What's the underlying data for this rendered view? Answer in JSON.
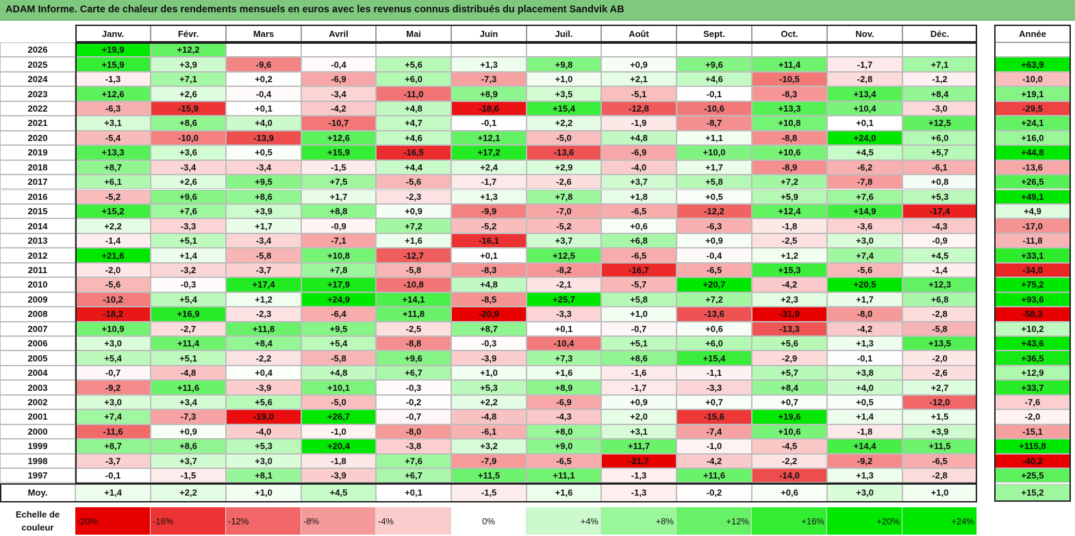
{
  "title": "ADAM Informe. Carte de chaleur des rendements mensuels en euros avec les revenus connus distribués du placement Sandvik AB",
  "chart_data": {
    "type": "heatmap",
    "months": [
      "Janv.",
      "Févr.",
      "Mars",
      "Avril",
      "Mai",
      "Juin",
      "Juil.",
      "Août",
      "Sept.",
      "Oct.",
      "Nov.",
      "Déc."
    ],
    "year_header": "Année",
    "rows": [
      {
        "year": "2026",
        "months": [
          "+19,9",
          "+12,2",
          "",
          "",
          "",
          "",
          "",
          "",
          "",
          "",
          "",
          ""
        ],
        "annual": ""
      },
      {
        "year": "2025",
        "months": [
          "+15,9",
          "+3,9",
          "-9,6",
          "-0,4",
          "+5,6",
          "+1,3",
          "+9,8",
          "+0,9",
          "+9,6",
          "+11,4",
          "-1,7",
          "+7,1"
        ],
        "annual": "+63,9"
      },
      {
        "year": "2024",
        "months": [
          "-1,3",
          "+7,1",
          "+0,2",
          "-6,9",
          "+6,0",
          "-7,3",
          "+1,0",
          "+2,1",
          "+4,6",
          "-10,5",
          "-2,8",
          "-1,2"
        ],
        "annual": "-10,0"
      },
      {
        "year": "2023",
        "months": [
          "+12,6",
          "+2,6",
          "-0,4",
          "-3,4",
          "-11,0",
          "+8,9",
          "+3,5",
          "-5,1",
          "-0,1",
          "-8,3",
          "+13,4",
          "+8,4"
        ],
        "annual": "+19,1"
      },
      {
        "year": "2022",
        "months": [
          "-6,3",
          "-15,9",
          "+0,1",
          "-4,2",
          "+4,8",
          "-18,6",
          "+15,4",
          "-12,8",
          "-10,6",
          "+13,3",
          "+10,4",
          "-3,0"
        ],
        "annual": "-29,5"
      },
      {
        "year": "2021",
        "months": [
          "+3,1",
          "+8,6",
          "+4,0",
          "-10,7",
          "+4,7",
          "-0,1",
          "+2,2",
          "-1,9",
          "-8,7",
          "+10,8",
          "+0,1",
          "+12,5"
        ],
        "annual": "+24,1"
      },
      {
        "year": "2020",
        "months": [
          "-5,4",
          "-10,0",
          "-13,9",
          "+12,6",
          "+4,6",
          "+12,1",
          "-5,0",
          "+4,8",
          "+1,1",
          "-8,8",
          "+24,0",
          "+6,0"
        ],
        "annual": "+16,0"
      },
      {
        "year": "2019",
        "months": [
          "+13,3",
          "+3,6",
          "+0,5",
          "+15,9",
          "-16,5",
          "+17,2",
          "-13,6",
          "-6,9",
          "+10,0",
          "+10,6",
          "+4,5",
          "+5,7"
        ],
        "annual": "+44,8"
      },
      {
        "year": "2018",
        "months": [
          "+8,7",
          "-3,4",
          "-3,4",
          "-1,5",
          "+4,4",
          "+2,4",
          "+2,9",
          "-4,0",
          "+1,7",
          "-8,9",
          "-6,2",
          "-6,1"
        ],
        "annual": "-13,6"
      },
      {
        "year": "2017",
        "months": [
          "+6,1",
          "+2,6",
          "+9,5",
          "+7,5",
          "-5,6",
          "-1,7",
          "-2,6",
          "+3,7",
          "+5,8",
          "+7,2",
          "-7,8",
          "+0,8"
        ],
        "annual": "+26,5"
      },
      {
        "year": "2016",
        "months": [
          "-5,2",
          "+9,6",
          "+8,6",
          "+1,7",
          "-2,3",
          "+1,3",
          "+7,8",
          "+1,8",
          "+0,5",
          "+5,9",
          "+7,6",
          "+5,3"
        ],
        "annual": "+49,1"
      },
      {
        "year": "2015",
        "months": [
          "+15,2",
          "+7,6",
          "+3,9",
          "+8,8",
          "+0,9",
          "-9,9",
          "-7,0",
          "-6,5",
          "-12,2",
          "+12,4",
          "+14,9",
          "-17,4"
        ],
        "annual": "+4,9"
      },
      {
        "year": "2014",
        "months": [
          "+2,2",
          "-3,3",
          "+1,7",
          "-0,9",
          "+7,2",
          "-5,2",
          "-5,2",
          "+0,6",
          "-6,3",
          "-1,8",
          "-3,6",
          "-4,3"
        ],
        "annual": "-17,0"
      },
      {
        "year": "2013",
        "months": [
          "-1,4",
          "+5,1",
          "-3,4",
          "-7,1",
          "+1,6",
          "-16,1",
          "+3,7",
          "+6,8",
          "+0,9",
          "-2,5",
          "+3,0",
          "-0,9"
        ],
        "annual": "-11,8"
      },
      {
        "year": "2012",
        "months": [
          "+21,6",
          "+1,4",
          "-5,8",
          "+10,8",
          "-12,7",
          "+0,1",
          "+12,5",
          "-6,5",
          "-0,4",
          "+1,2",
          "+7,4",
          "+4,5"
        ],
        "annual": "+33,1"
      },
      {
        "year": "2011",
        "months": [
          "-2,0",
          "-3,2",
          "-3,7",
          "+7,8",
          "-5,8",
          "-8,3",
          "-8,2",
          "-16,7",
          "-6,5",
          "+15,3",
          "-5,6",
          "-1,4"
        ],
        "annual": "-34,0"
      },
      {
        "year": "2010",
        "months": [
          "-5,6",
          "-0,3",
          "+17,4",
          "+17,9",
          "-10,8",
          "+4,8",
          "-2,1",
          "-5,7",
          "+20,7",
          "-4,2",
          "+20,5",
          "+12,3"
        ],
        "annual": "+75,2"
      },
      {
        "year": "2009",
        "months": [
          "-10,2",
          "+5,4",
          "+1,2",
          "+24,9",
          "+14,1",
          "-8,5",
          "+25,7",
          "+5,8",
          "+7,2",
          "+2,3",
          "+1,7",
          "+6,8"
        ],
        "annual": "+93,6"
      },
      {
        "year": "2008",
        "months": [
          "-18,2",
          "+16,9",
          "-2,3",
          "-6,4",
          "+11,8",
          "-20,9",
          "-3,3",
          "+1,0",
          "-13,6",
          "-31,9",
          "-8,0",
          "-2,8"
        ],
        "annual": "-58,3"
      },
      {
        "year": "2007",
        "months": [
          "+10,9",
          "-2,7",
          "+11,8",
          "+9,5",
          "-2,5",
          "+8,7",
          "+0,1",
          "-0,7",
          "+0,6",
          "-13,3",
          "-4,2",
          "-5,8"
        ],
        "annual": "+10,2"
      },
      {
        "year": "2006",
        "months": [
          "+3,0",
          "+11,4",
          "+8,4",
          "+5,4",
          "-8,8",
          "-0,3",
          "-10,4",
          "+5,1",
          "+6,0",
          "+5,6",
          "+1,3",
          "+13,5"
        ],
        "annual": "+43,6"
      },
      {
        "year": "2005",
        "months": [
          "+5,4",
          "+5,1",
          "-2,2",
          "-5,8",
          "+9,6",
          "-3,9",
          "+7,3",
          "+8,6",
          "+15,4",
          "-2,9",
          "-0,1",
          "-2,0"
        ],
        "annual": "+36,5"
      },
      {
        "year": "2004",
        "months": [
          "-0,7",
          "-4,8",
          "+0,4",
          "+4,8",
          "+6,7",
          "+1,0",
          "+1,6",
          "-1,6",
          "-1,1",
          "+5,7",
          "+3,8",
          "-2,6"
        ],
        "annual": "+12,9"
      },
      {
        "year": "2003",
        "months": [
          "-9,2",
          "+11,6",
          "-3,9",
          "+10,1",
          "-0,3",
          "+5,3",
          "+8,9",
          "-1,7",
          "-3,3",
          "+8,4",
          "+4,0",
          "+2,7"
        ],
        "annual": "+33,7"
      },
      {
        "year": "2002",
        "months": [
          "+3,0",
          "+3,4",
          "+5,6",
          "-5,0",
          "-0,2",
          "+2,2",
          "-6,9",
          "+0,9",
          "+0,7",
          "+0,7",
          "+0,5",
          "-12,0"
        ],
        "annual": "-7,6"
      },
      {
        "year": "2001",
        "months": [
          "+7,4",
          "-7,3",
          "-19,0",
          "+26,7",
          "-0,7",
          "-4,8",
          "-4,3",
          "+2,0",
          "-15,6",
          "+19,6",
          "+1,4",
          "+1,5"
        ],
        "annual": "-2,0"
      },
      {
        "year": "2000",
        "months": [
          "-11,6",
          "+0,9",
          "-4,0",
          "-1,0",
          "-8,0",
          "-6,1",
          "+8,0",
          "+3,1",
          "-7,4",
          "+10,6",
          "-1,8",
          "+3,9"
        ],
        "annual": "-15,1"
      },
      {
        "year": "1999",
        "months": [
          "+8,7",
          "+8,6",
          "+5,3",
          "+20,4",
          "-3,8",
          "+3,2",
          "+9,0",
          "+11,7",
          "-1,0",
          "-4,5",
          "+14,4",
          "+11,5"
        ],
        "annual": "+115,8"
      },
      {
        "year": "1998",
        "months": [
          "-3,7",
          "+3,7",
          "+3,0",
          "-1,8",
          "+7,6",
          "-7,9",
          "-6,5",
          "-21,7",
          "-4,2",
          "-2,2",
          "-9,2",
          "-6,5"
        ],
        "annual": "-40,2"
      },
      {
        "year": "1997",
        "months": [
          "-0,1",
          "-1,5",
          "+8,1",
          "-3,9",
          "+6,7",
          "+11,5",
          "+11,1",
          "-1,3",
          "+11,6",
          "-14,0",
          "+1,3",
          "-2,8"
        ],
        "annual": "+25,5"
      }
    ],
    "average": {
      "label": "Moy.",
      "months": [
        "+1,4",
        "+2,2",
        "+1,0",
        "+4,5",
        "+0,1",
        "-1,5",
        "+1,6",
        "-1,3",
        "-0,2",
        "+0,6",
        "+3,0",
        "+1,0"
      ],
      "annual": "+15,2"
    },
    "scale": {
      "label_line1": "Echelle de",
      "label_line2": "couleur",
      "steps": [
        "-20%",
        "-16%",
        "-12%",
        "-8%",
        "-4%",
        "0%",
        "+4%",
        "+8%",
        "+12%",
        "+16%",
        "+20%",
        "+24%"
      ]
    }
  }
}
